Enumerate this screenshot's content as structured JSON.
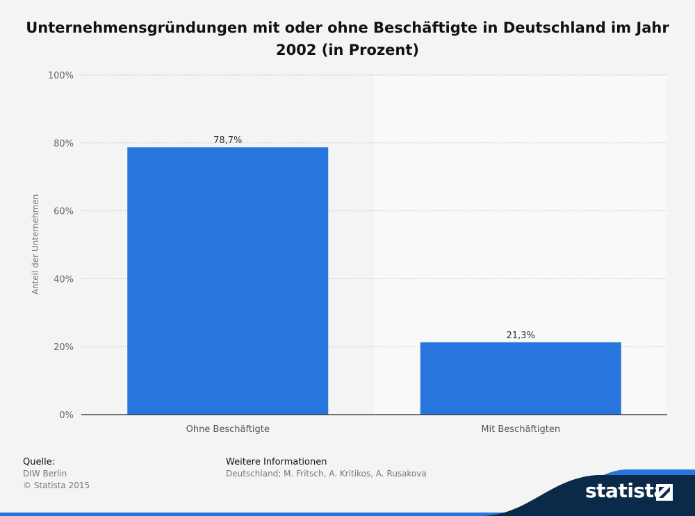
{
  "chart_data": {
    "type": "bar",
    "title": "Unternehmensgründungen mit oder ohne Beschäftigte in Deutschland im Jahr 2002 (in Prozent)",
    "ylabel": "Anteil der Unternehmen",
    "xlabel": "",
    "categories": [
      "Ohne Beschäftigte",
      "Mit Beschäftigten"
    ],
    "values": [
      78.7,
      21.3
    ],
    "value_labels": [
      "78,7%",
      "21,3%"
    ],
    "ylim": [
      0,
      100
    ],
    "yticks": [
      0,
      20,
      40,
      60,
      80,
      100
    ],
    "ytick_labels": [
      "0%",
      "20%",
      "40%",
      "60%",
      "80%",
      "100%"
    ],
    "grid": true,
    "bar_color": "#2876dd"
  },
  "footer": {
    "source_heading": "Quelle:",
    "source_lines": [
      "DIW Berlin",
      "© Statista 2015"
    ],
    "info_heading": "Weitere Informationen",
    "info_text": "Deutschland; M. Fritsch, A. Kritikos, A. Rusakova"
  },
  "brand": {
    "name": "statista",
    "icon": "statista-logo-icon",
    "colors": {
      "dark": "#0b2a4a",
      "accent": "#2876dd"
    }
  }
}
